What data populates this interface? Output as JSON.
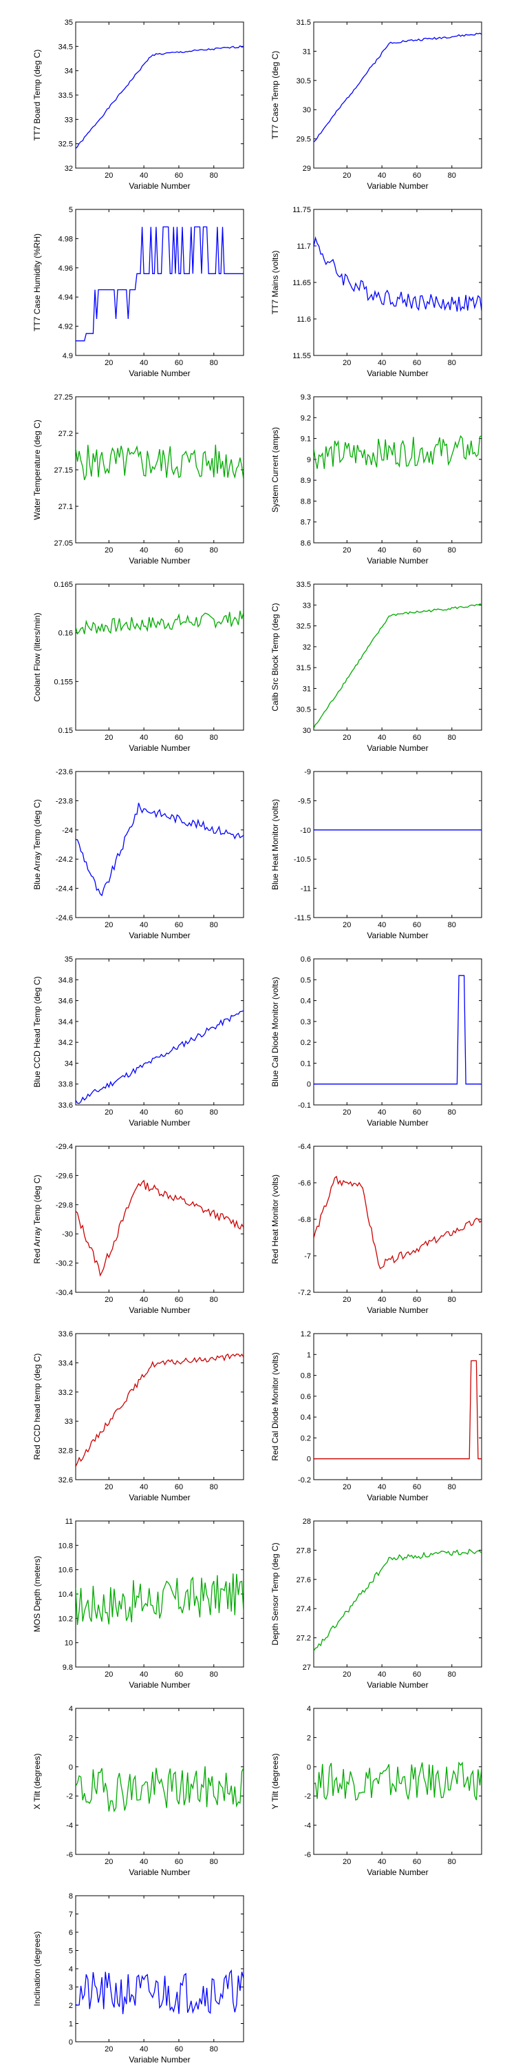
{
  "chart_data": [
    {
      "type": "line",
      "ylabel": "TT7 Board Temp (deg C)",
      "xlabel": "Variable Number",
      "xlim": [
        1,
        97
      ],
      "xticks": [
        20,
        40,
        60,
        80
      ],
      "xtick_labels": [
        "20",
        "40",
        "60",
        "80"
      ],
      "ylim": [
        32,
        35
      ],
      "yticks": [
        32,
        32.5,
        33,
        33.5,
        34,
        34.5,
        35
      ],
      "ytick_labels": [
        "32",
        "32.5",
        "33",
        "33.5",
        "34",
        "34.5",
        "35"
      ],
      "color": "#0000ff",
      "shape": "rise_sat",
      "base": 32.4,
      "end": 34.5,
      "noise": 0.02,
      "seed": 1
    },
    {
      "type": "line",
      "ylabel": "TT7 Case Temp (deg C)",
      "xlabel": "Variable Number",
      "xlim": [
        1,
        97
      ],
      "xticks": [
        20,
        40,
        60,
        80
      ],
      "xtick_labels": [
        "20",
        "40",
        "60",
        "80"
      ],
      "ylim": [
        29,
        31.5
      ],
      "yticks": [
        29,
        29.5,
        30,
        30.5,
        31,
        31.5
      ],
      "ytick_labels": [
        "29",
        "29.5",
        "30",
        "30.5",
        "31",
        "31.5"
      ],
      "color": "#0000ff",
      "shape": "rise_sat",
      "base": 29.45,
      "end": 31.3,
      "noise": 0.02,
      "seed": 2
    },
    {
      "type": "line",
      "ylabel": "TT7 Case Humidity (%RH)",
      "xlabel": "Variable Number",
      "xlim": [
        1,
        97
      ],
      "xticks": [
        20,
        40,
        60,
        80
      ],
      "xtick_labels": [
        "20",
        "40",
        "60",
        "80"
      ],
      "ylim": [
        4.9,
        5
      ],
      "yticks": [
        4.9,
        4.92,
        4.94,
        4.96,
        4.98,
        5
      ],
      "ytick_labels": [
        "4.9",
        "4.92",
        "4.94",
        "4.96",
        "4.98",
        "5"
      ],
      "color": "#0000ff",
      "shape": "humid",
      "base": 4.91,
      "end": 4.96,
      "noise": 0,
      "seed": 3
    },
    {
      "type": "line",
      "ylabel": "TT7 Mains  (volts)",
      "xlabel": "Variable Number",
      "xlim": [
        1,
        97
      ],
      "xticks": [
        20,
        40,
        60,
        80
      ],
      "xtick_labels": [
        "20",
        "40",
        "60",
        "80"
      ],
      "ylim": [
        11.55,
        11.75
      ],
      "yticks": [
        11.55,
        11.6,
        11.65,
        11.7,
        11.75
      ],
      "ytick_labels": [
        "11.55",
        "11.6",
        "11.65",
        "11.7",
        "11.75"
      ],
      "color": "#0000ff",
      "shape": "decay",
      "base": 11.71,
      "end": 11.62,
      "noise": 0.012,
      "seed": 4
    },
    {
      "type": "line",
      "ylabel": "Water Temperature (deg C)",
      "xlabel": "Variable Number",
      "xlim": [
        1,
        97
      ],
      "xticks": [
        20,
        40,
        60,
        80
      ],
      "xtick_labels": [
        "20",
        "40",
        "60",
        "80"
      ],
      "ylim": [
        27.05,
        27.25
      ],
      "yticks": [
        27.05,
        27.1,
        27.15,
        27.2,
        27.25
      ],
      "ytick_labels": [
        "27.05",
        "27.1",
        "27.15",
        "27.2",
        "27.25"
      ],
      "color": "#00aa00",
      "shape": "noise",
      "base": 27.16,
      "end": 27.16,
      "noise": 0.025,
      "seed": 5
    },
    {
      "type": "line",
      "ylabel": "System Current (amps)",
      "xlabel": "Variable Number",
      "xlim": [
        1,
        97
      ],
      "xticks": [
        20,
        40,
        60,
        80
      ],
      "xtick_labels": [
        "20",
        "40",
        "60",
        "80"
      ],
      "ylim": [
        8.6,
        9.3
      ],
      "yticks": [
        8.6,
        8.7,
        8.8,
        8.9,
        9,
        9.1,
        9.2,
        9.3
      ],
      "ytick_labels": [
        "8.6",
        "8.7",
        "8.8",
        "8.9",
        "9",
        "9.1",
        "9.2",
        "9.3"
      ],
      "color": "#00aa00",
      "shape": "noise",
      "base": 9.02,
      "end": 9.05,
      "noise": 0.07,
      "seed": 6
    },
    {
      "type": "line",
      "ylabel": "Coolant Flow (liters/min)",
      "xlabel": "Variable Number",
      "xlim": [
        1,
        97
      ],
      "xticks": [
        20,
        40,
        60,
        80
      ],
      "xtick_labels": [
        "20",
        "40",
        "60",
        "80"
      ],
      "ylim": [
        0.15,
        0.165
      ],
      "yticks": [
        0.15,
        0.155,
        0.16,
        0.165
      ],
      "ytick_labels": [
        "0.15",
        "0.155",
        "0.16",
        "0.165"
      ],
      "color": "#00aa00",
      "shape": "noise",
      "base": 0.1605,
      "end": 0.1615,
      "noise": 0.0008,
      "seed": 7
    },
    {
      "type": "line",
      "ylabel": "Calib Src Block Temp (deg C)",
      "xlabel": "Variable Number",
      "xlim": [
        1,
        97
      ],
      "xticks": [
        20,
        40,
        60,
        80
      ],
      "xtick_labels": [
        "20",
        "40",
        "60",
        "80"
      ],
      "ylim": [
        30,
        33.5
      ],
      "yticks": [
        30,
        30.5,
        31,
        31.5,
        32,
        32.5,
        33,
        33.5
      ],
      "ytick_labels": [
        "30",
        "30.5",
        "31",
        "31.5",
        "32",
        "32.5",
        "33",
        "33.5"
      ],
      "color": "#00aa00",
      "shape": "rise_sat",
      "base": 30.05,
      "end": 33.0,
      "noise": 0.03,
      "seed": 8
    },
    {
      "type": "line",
      "ylabel": "Blue Array Temp (deg C)",
      "xlabel": "Variable Number",
      "xlim": [
        1,
        97
      ],
      "xticks": [
        20,
        40,
        60,
        80
      ],
      "xtick_labels": [
        "20",
        "40",
        "60",
        "80"
      ],
      "ylim": [
        -24.6,
        -23.6
      ],
      "yticks": [
        -24.6,
        -24.4,
        -24.2,
        -24,
        -23.8,
        -23.6
      ],
      "ytick_labels": [
        "-24.6",
        "-24.4",
        "-24.2",
        "-24",
        "-23.8",
        "-23.6"
      ],
      "color": "#0000ff",
      "shape": "dip_rise",
      "base": -24.05,
      "end": -24.05,
      "noise": 0.03,
      "seed": 9
    },
    {
      "type": "line",
      "ylabel": "Blue Heat Monitor (volts)",
      "xlabel": "Variable Number",
      "xlim": [
        1,
        97
      ],
      "xticks": [
        20,
        40,
        60,
        80
      ],
      "xtick_labels": [
        "20",
        "40",
        "60",
        "80"
      ],
      "ylim": [
        -11.5,
        -9
      ],
      "yticks": [
        -11.5,
        -11,
        -10.5,
        -10,
        -9.5,
        -9
      ],
      "ytick_labels": [
        "-11.5",
        "-11",
        "-10.5",
        "-10",
        "-9.5",
        "-9"
      ],
      "color": "#0000ff",
      "shape": "flat",
      "base": -10,
      "end": -10,
      "noise": 0,
      "seed": 10
    },
    {
      "type": "line",
      "ylabel": "Blue CCD Head Temp (deg C)",
      "xlabel": "Variable Number",
      "xlim": [
        1,
        97
      ],
      "xticks": [
        20,
        40,
        60,
        80
      ],
      "xtick_labels": [
        "20",
        "40",
        "60",
        "80"
      ],
      "ylim": [
        33.6,
        35
      ],
      "yticks": [
        33.6,
        33.8,
        34,
        34.2,
        34.4,
        34.6,
        34.8,
        35
      ],
      "ytick_labels": [
        "33.6",
        "33.8",
        "34",
        "34.2",
        "34.4",
        "34.6",
        "34.8",
        "35"
      ],
      "color": "#0000ff",
      "shape": "rise_lin",
      "base": 33.62,
      "end": 34.5,
      "noise": 0.03,
      "seed": 11
    },
    {
      "type": "line",
      "ylabel": "Blue Cal Diode Monitor (volts)",
      "xlabel": "Variable Number",
      "xlim": [
        1,
        97
      ],
      "xticks": [
        20,
        40,
        60,
        80
      ],
      "xtick_labels": [
        "20",
        "40",
        "60",
        "80"
      ],
      "ylim": [
        -0.1,
        0.6
      ],
      "yticks": [
        -0.1,
        0,
        0.1,
        0.2,
        0.3,
        0.4,
        0.5,
        0.6
      ],
      "ytick_labels": [
        "-0.1",
        "0",
        "0.1",
        "0.2",
        "0.3",
        "0.4",
        "0.5",
        "0.6"
      ],
      "color": "#0000ff",
      "shape": "spike",
      "base": 0,
      "end": 0.52,
      "noise": 0,
      "seed": 12,
      "spike": [
        84,
        87
      ]
    },
    {
      "type": "line",
      "ylabel": "Red Array Temp (deg C)",
      "xlabel": "Variable Number",
      "xlim": [
        1,
        97
      ],
      "xticks": [
        20,
        40,
        60,
        80
      ],
      "xtick_labels": [
        "20",
        "40",
        "60",
        "80"
      ],
      "ylim": [
        -30.4,
        -29.4
      ],
      "yticks": [
        -30.4,
        -30.2,
        -30,
        -29.8,
        -29.6,
        -29.4
      ],
      "ytick_labels": [
        "-30.4",
        "-30.2",
        "-30",
        "-29.8",
        "-29.6",
        "-29.4"
      ],
      "color": "#cc0000",
      "shape": "dip_rise",
      "base": -29.85,
      "end": -29.95,
      "noise": 0.03,
      "seed": 13
    },
    {
      "type": "line",
      "ylabel": "Red Heat Monitor (volts)",
      "xlabel": "Variable Number",
      "xlim": [
        1,
        97
      ],
      "xticks": [
        20,
        40,
        60,
        80
      ],
      "xtick_labels": [
        "20",
        "40",
        "60",
        "80"
      ],
      "ylim": [
        -7.2,
        -6.4
      ],
      "yticks": [
        -7.2,
        -7,
        -6.8,
        -6.6,
        -6.4
      ],
      "ytick_labels": [
        "-7.2",
        "-7",
        "-6.8",
        "-6.6",
        "-6.4"
      ],
      "color": "#cc0000",
      "shape": "heat",
      "base": -6.9,
      "end": -6.8,
      "noise": 0.02,
      "seed": 14
    },
    {
      "type": "line",
      "ylabel": "Red CCD head temp (deg C)",
      "xlabel": "Variable Number",
      "xlim": [
        1,
        97
      ],
      "xticks": [
        20,
        40,
        60,
        80
      ],
      "xtick_labels": [
        "20",
        "40",
        "60",
        "80"
      ],
      "ylim": [
        32.6,
        33.6
      ],
      "yticks": [
        32.6,
        32.8,
        33,
        33.2,
        33.4,
        33.6
      ],
      "ytick_labels": [
        "32.6",
        "32.8",
        "33",
        "33.2",
        "33.4",
        "33.6"
      ],
      "color": "#cc0000",
      "shape": "rise_sat",
      "base": 32.7,
      "end": 33.45,
      "noise": 0.02,
      "seed": 15
    },
    {
      "type": "line",
      "ylabel": "Red Cal Diode Monitor (volts)",
      "xlabel": "Variable Number",
      "xlim": [
        1,
        97
      ],
      "xticks": [
        20,
        40,
        60,
        80
      ],
      "xtick_labels": [
        "20",
        "40",
        "60",
        "80"
      ],
      "ylim": [
        -0.2,
        1.2
      ],
      "yticks": [
        -0.2,
        0,
        0.2,
        0.4,
        0.6,
        0.8,
        1,
        1.2
      ],
      "ytick_labels": [
        "-0.2",
        "0",
        "0.2",
        "0.4",
        "0.6",
        "0.8",
        "1",
        "1.2"
      ],
      "color": "#cc0000",
      "shape": "spike",
      "base": 0,
      "end": 0.94,
      "noise": 0,
      "seed": 16,
      "spike": [
        91,
        94
      ]
    },
    {
      "type": "line",
      "ylabel": "MOS Depth  (meters)",
      "xlabel": "Variable Number",
      "xlim": [
        1,
        97
      ],
      "xticks": [
        20,
        40,
        60,
        80
      ],
      "xtick_labels": [
        "20",
        "40",
        "60",
        "80"
      ],
      "ylim": [
        9.8,
        11
      ],
      "yticks": [
        9.8,
        10,
        10.2,
        10.4,
        10.6,
        10.8,
        11
      ],
      "ytick_labels": [
        "9.8",
        "10",
        "10.2",
        "10.4",
        "10.6",
        "10.8",
        "11"
      ],
      "color": "#00aa00",
      "shape": "noise",
      "base": 10.3,
      "end": 10.4,
      "noise": 0.18,
      "seed": 17
    },
    {
      "type": "line",
      "ylabel": "Depth Sensor Temp (deg C)",
      "xlabel": "Variable Number",
      "xlim": [
        1,
        97
      ],
      "xticks": [
        20,
        40,
        60,
        80
      ],
      "xtick_labels": [
        "20",
        "40",
        "60",
        "80"
      ],
      "ylim": [
        27,
        28
      ],
      "yticks": [
        27,
        27.2,
        27.4,
        27.6,
        27.8,
        28
      ],
      "ytick_labels": [
        "27",
        "27.2",
        "27.4",
        "27.6",
        "27.8",
        "28"
      ],
      "color": "#00aa00",
      "shape": "rise_sat",
      "base": 27.1,
      "end": 27.8,
      "noise": 0.02,
      "seed": 18
    },
    {
      "type": "line",
      "ylabel": "X Tilt  (degrees)",
      "xlabel": "Variable Number",
      "xlim": [
        1,
        97
      ],
      "xticks": [
        20,
        40,
        60,
        80
      ],
      "xtick_labels": [
        "20",
        "40",
        "60",
        "80"
      ],
      "ylim": [
        -6,
        4
      ],
      "yticks": [
        -6,
        -4,
        -2,
        0,
        2,
        4
      ],
      "ytick_labels": [
        "-6",
        "-4",
        "-2",
        "0",
        "2",
        "4"
      ],
      "color": "#00aa00",
      "shape": "noise",
      "base": -1.6,
      "end": -1.4,
      "noise": 1.5,
      "seed": 19
    },
    {
      "type": "line",
      "ylabel": "Y Tilt  (degrees)",
      "xlabel": "Variable Number",
      "xlim": [
        1,
        97
      ],
      "xticks": [
        20,
        40,
        60,
        80
      ],
      "xtick_labels": [
        "20",
        "40",
        "60",
        "80"
      ],
      "ylim": [
        -6,
        4
      ],
      "yticks": [
        -6,
        -4,
        -2,
        0,
        2,
        4
      ],
      "ytick_labels": [
        "-6",
        "-4",
        "-2",
        "0",
        "2",
        "4"
      ],
      "color": "#00aa00",
      "shape": "noise",
      "base": -1.0,
      "end": -1.0,
      "noise": 1.3,
      "seed": 20
    },
    {
      "type": "line",
      "ylabel": "Inclination  (degrees)",
      "xlabel": "Variable Number",
      "xlim": [
        1,
        97
      ],
      "xticks": [
        20,
        40,
        60,
        80
      ],
      "xtick_labels": [
        "20",
        "40",
        "60",
        "80"
      ],
      "ylim": [
        0,
        8
      ],
      "yticks": [
        0,
        1,
        2,
        3,
        4,
        5,
        6,
        7,
        8
      ],
      "ytick_labels": [
        "0",
        "1",
        "2",
        "3",
        "4",
        "5",
        "6",
        "7",
        "8"
      ],
      "color": "#0000ff",
      "shape": "noise",
      "base": 2.6,
      "end": 2.8,
      "noise": 1.2,
      "seed": 21
    }
  ]
}
